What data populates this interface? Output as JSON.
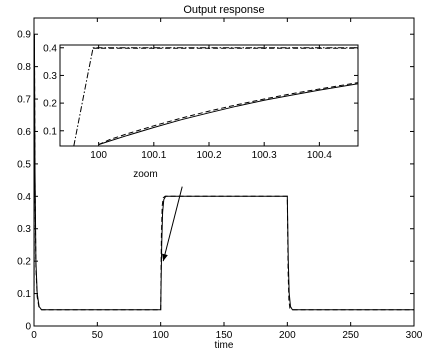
{
  "chart_data": [
    {
      "type": "line",
      "title": "Output response",
      "xlabel": "time",
      "ylabel": "",
      "xlim": [
        0,
        300
      ],
      "ylim": [
        0,
        0.95
      ],
      "xticks": [
        "0",
        "50",
        "100",
        "150",
        "200",
        "250",
        "300"
      ],
      "xtick_values": [
        0,
        50,
        100,
        150,
        200,
        250,
        300
      ],
      "yticks": [
        "0",
        "0.1",
        "0.2",
        "0.3",
        "0.4",
        "0.5",
        "0.6",
        "0.7",
        "0.8",
        "0.9"
      ],
      "ytick_values": [
        0,
        0.1,
        0.2,
        0.3,
        0.4,
        0.5,
        0.6,
        0.7,
        0.8,
        0.9
      ],
      "grid": false,
      "series": [
        {
          "style": "solid",
          "color": "#000000",
          "x": [
            0,
            0.3,
            0.8,
            1.5,
            2.5,
            4,
            6,
            99.9,
            100,
            100.8,
            101.5,
            102.5,
            104,
            199.9,
            200,
            200.8,
            201.5,
            202.5,
            204,
            300
          ],
          "y": [
            0,
            0.9,
            0.48,
            0.2,
            0.1,
            0.06,
            0.05,
            0.05,
            0.05,
            0.25,
            0.35,
            0.39,
            0.4,
            0.4,
            0.4,
            0.2,
            0.1,
            0.06,
            0.05,
            0.05
          ]
        },
        {
          "style": "dashed",
          "color": "#000000",
          "x": [
            0,
            0.3,
            0.8,
            1.5,
            2.5,
            4,
            6,
            99.9,
            100,
            100.6,
            101.2,
            102,
            103.5,
            199.9,
            200,
            200.6,
            201.2,
            202,
            203.5,
            300
          ],
          "y": [
            0,
            0.9,
            0.45,
            0.18,
            0.09,
            0.055,
            0.05,
            0.05,
            0.05,
            0.28,
            0.37,
            0.395,
            0.4,
            0.4,
            0.4,
            0.17,
            0.08,
            0.055,
            0.05,
            0.05
          ]
        }
      ],
      "annotations": [
        {
          "text": "zoom",
          "x": 88,
          "y": 0.46
        }
      ],
      "arrow": {
        "from": [
          117,
          0.43
        ],
        "to": [
          102,
          0.2
        ]
      }
    },
    {
      "type": "line",
      "title": "",
      "inset": true,
      "xlim": [
        99.93,
        100.47
      ],
      "ylim": [
        0.045,
        0.41
      ],
      "xticks": [
        "100",
        "100.1",
        "100.2",
        "100.3",
        "100.4"
      ],
      "xtick_values": [
        100,
        100.1,
        100.2,
        100.3,
        100.4
      ],
      "yticks": [
        "0.1",
        "0.2",
        "0.3",
        "0.4"
      ],
      "ytick_values": [
        0.1,
        0.2,
        0.3,
        0.4
      ],
      "grid": false,
      "series": [
        {
          "style": "solid",
          "color": "#000000",
          "x": [
            100,
            100.02,
            100.05,
            100.1,
            100.15,
            100.2,
            100.25,
            100.3,
            100.35,
            100.4,
            100.47
          ],
          "y": [
            0.05,
            0.063,
            0.082,
            0.112,
            0.14,
            0.165,
            0.189,
            0.21,
            0.229,
            0.247,
            0.27
          ]
        },
        {
          "style": "dashed",
          "color": "#000000",
          "x": [
            100,
            100.02,
            100.05,
            100.1,
            100.15,
            100.2,
            100.25,
            100.3,
            100.35,
            100.4,
            100.47
          ],
          "y": [
            0.05,
            0.068,
            0.088,
            0.118,
            0.146,
            0.171,
            0.194,
            0.215,
            0.234,
            0.251,
            0.274
          ]
        },
        {
          "style": "dashdot",
          "color": "#000000",
          "x": [
            99.955,
            99.98,
            99.99,
            100.47
          ],
          "y": [
            0.045,
            0.3,
            0.4,
            0.4
          ]
        },
        {
          "style": "dashed",
          "color": "#000000",
          "x": [
            99.99,
            100.47
          ],
          "y": [
            0.398,
            0.398
          ]
        }
      ]
    }
  ]
}
